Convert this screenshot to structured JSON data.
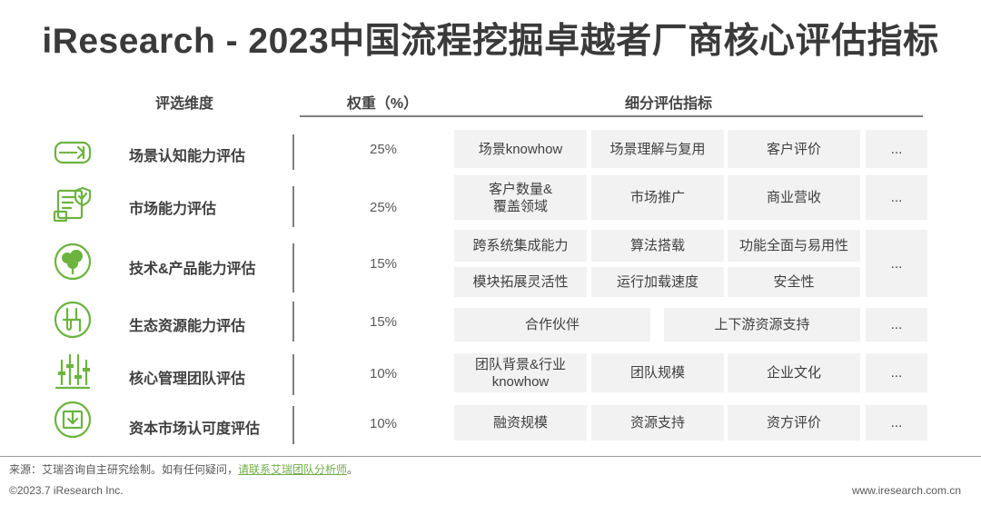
{
  "title": "iResearch - 2023中国流程挖掘卓越者厂商核心评估指标",
  "headers": {
    "dimension": "评选维度",
    "weight": "权重（%）",
    "indicators": "细分评估指标"
  },
  "rows": [
    {
      "icon": "scene-cognition-icon",
      "label": "场景认知能力评估",
      "weight": "25%",
      "cells": [
        "场景knowhow",
        "场景理解与复用",
        "客户评价",
        "..."
      ]
    },
    {
      "icon": "market-document-shield-icon",
      "label": "市场能力评估",
      "weight": "25%",
      "cells": [
        "客户数量&\n覆盖领域",
        "市场推广",
        "商业营收",
        "..."
      ]
    },
    {
      "icon": "tree-icon",
      "label": "技术&产品能力评估",
      "weight": "15%",
      "cells": [
        "跨系统集成能力",
        "算法搭载",
        "功能全面与易用性",
        "模块拓展灵活性",
        "运行加载速度",
        "安全性",
        "..."
      ]
    },
    {
      "icon": "ecosystem-pipe-icon",
      "label": "生态资源能力评估",
      "weight": "15%",
      "cells": [
        "合作伙伴",
        "上下游资源支持",
        "..."
      ]
    },
    {
      "icon": "team-equalizer-icon",
      "label": "核心管理团队评估",
      "weight": "10%",
      "cells": [
        "团队背景&行业\nknowhow",
        "团队规模",
        "企业文化",
        "..."
      ]
    },
    {
      "icon": "capital-download-icon",
      "label": "资本市场认可度评估",
      "weight": "10%",
      "cells": [
        "融资规模",
        "资源支持",
        "资方评价",
        "..."
      ]
    }
  ],
  "footer": {
    "source_prefix": "来源：艾瑞咨询自主研究绘制。如有任何疑问，",
    "source_link": "请联系艾瑞团队分析师",
    "source_suffix": "。",
    "copyright": "©2023.7 iResearch Inc.",
    "website": "www.iresearch.com.cn"
  },
  "colors": {
    "accent_green": "#6cb33f",
    "cell_bg": "#f2f2f2",
    "text": "#404040"
  }
}
